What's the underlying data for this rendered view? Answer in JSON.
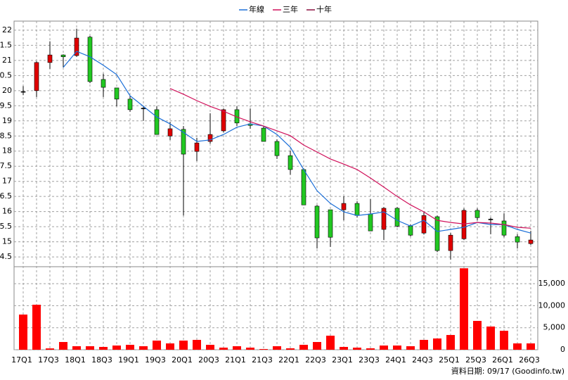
{
  "chart_data": [
    {
      "type": "candlestick",
      "categories": [
        "17Q1",
        null,
        "17Q3",
        null,
        "18Q1",
        null,
        "18Q3",
        null,
        "19Q1",
        null,
        "19Q3",
        null,
        "20Q1",
        null,
        "20Q3",
        null,
        "21Q1",
        null,
        "21Q3",
        null,
        "22Q1",
        null,
        "22Q3",
        null,
        "23Q1",
        null,
        "23Q3",
        null,
        "24Q1",
        null,
        "24Q3",
        null,
        "25Q1",
        null,
        "25Q3",
        null,
        "26Q1",
        null,
        "26Q3"
      ],
      "open": [
        19.97,
        20.0,
        20.93,
        21.18,
        21.16,
        21.77,
        20.37,
        20.09,
        19.72,
        19.42,
        19.37,
        18.5,
        18.72,
        17.99,
        18.32,
        18.67,
        19.37,
        18.9,
        18.76,
        18.32,
        17.85,
        17.39,
        16.18,
        16.06,
        16.06,
        16.27,
        15.92,
        15.41,
        16.11,
        15.52,
        15.29,
        15.83,
        14.71,
        15.1,
        16.04,
        15.75,
        15.69,
        15.17,
        14.94
      ],
      "high": [
        20.15,
        20.97,
        21.63,
        21.2,
        22.05,
        21.81,
        20.56,
        20.09,
        19.83,
        19.48,
        19.48,
        18.97,
        18.83,
        18.44,
        19.25,
        19.41,
        19.48,
        19.41,
        18.83,
        18.39,
        18.02,
        17.43,
        16.22,
        16.06,
        16.5,
        16.34,
        16.41,
        16.15,
        16.15,
        15.57,
        15.99,
        15.87,
        15.29,
        16.11,
        16.11,
        15.8,
        15.94,
        15.25,
        15.36
      ],
      "low": [
        19.85,
        19.79,
        20.72,
        20.77,
        21.12,
        20.25,
        19.79,
        19.48,
        19.3,
        19.0,
        18.55,
        18.37,
        15.87,
        17.67,
        18.25,
        18.62,
        18.83,
        18.74,
        18.32,
        17.74,
        17.22,
        16.22,
        14.78,
        14.83,
        15.71,
        15.8,
        15.36,
        15.06,
        15.48,
        15.18,
        15.24,
        14.66,
        14.41,
        15.06,
        15.71,
        15.25,
        15.15,
        14.78,
        14.9
      ],
      "close": [
        19.97,
        20.93,
        21.18,
        21.12,
        21.74,
        20.3,
        20.11,
        19.72,
        19.37,
        19.42,
        18.55,
        18.74,
        17.9,
        18.27,
        18.55,
        19.37,
        18.93,
        18.85,
        18.32,
        17.85,
        17.39,
        16.22,
        15.13,
        15.15,
        16.27,
        15.87,
        15.36,
        16.11,
        15.52,
        15.22,
        15.87,
        14.71,
        15.22,
        16.04,
        15.8,
        15.75,
        15.22,
        14.99,
        15.06
      ],
      "up_color": "#e00000",
      "down_color": "#22c822",
      "series": [
        {
          "name": "年線",
          "color": "#1c6fd8",
          "values": [
            null,
            null,
            null,
            20.77,
            21.3,
            21.12,
            20.84,
            20.53,
            19.83,
            19.48,
            19.13,
            18.9,
            18.62,
            18.32,
            18.37,
            18.55,
            18.79,
            18.9,
            18.83,
            18.55,
            18.13,
            17.39,
            16.69,
            16.27,
            15.99,
            15.87,
            15.92,
            15.99,
            15.71,
            15.52,
            15.71,
            15.34,
            15.41,
            15.48,
            15.64,
            15.57,
            15.57,
            15.41,
            15.29
          ]
        },
        {
          "name": "三年",
          "color": "#d0105a",
          "values": [
            null,
            null,
            null,
            null,
            null,
            null,
            null,
            null,
            null,
            null,
            null,
            20.07,
            19.88,
            19.67,
            19.48,
            19.32,
            19.13,
            18.97,
            18.83,
            18.67,
            18.51,
            18.2,
            17.97,
            17.74,
            17.57,
            17.39,
            17.11,
            16.81,
            16.5,
            16.22,
            15.99,
            15.71,
            15.64,
            15.59,
            15.64,
            15.62,
            15.57,
            15.48,
            15.45
          ]
        },
        {
          "name": "十年",
          "color": "#8a1040",
          "values": [
            null,
            null,
            null,
            null,
            null,
            null,
            null,
            null,
            null,
            null,
            null,
            null,
            null,
            null,
            null,
            null,
            null,
            null,
            null,
            null,
            null,
            null,
            null,
            null,
            null,
            null,
            null,
            null,
            null,
            null,
            null,
            null,
            null,
            null,
            null,
            null,
            null,
            null,
            null
          ]
        }
      ],
      "ylim": [
        14.2,
        22.3
      ],
      "yticks": [
        22,
        {
          "value": 21.5,
          "label": "1.5"
        },
        21,
        {
          "value": 20.5,
          "label": "0.5"
        },
        20,
        {
          "value": 19.5,
          "label": "9.5"
        },
        19,
        {
          "value": 18.5,
          "label": "8.5"
        },
        18,
        {
          "value": 17.5,
          "label": "7.5"
        },
        17,
        {
          "value": 16.5,
          "label": "6.5"
        },
        16,
        {
          "value": 15.5,
          "label": "5.5"
        },
        15,
        {
          "value": 14.5,
          "label": "4.5"
        }
      ],
      "grid": true
    },
    {
      "type": "bar",
      "color": "#ff0000",
      "values": [
        7990,
        10220,
        300,
        1760,
        800,
        800,
        640,
        960,
        1120,
        800,
        2080,
        1440,
        2080,
        2240,
        1120,
        480,
        800,
        480,
        160,
        800,
        320,
        1120,
        1760,
        3190,
        640,
        480,
        320,
        960,
        960,
        800,
        2240,
        2560,
        3350,
        18500,
        6550,
        5270,
        4310,
        1440,
        1440
      ],
      "ylim": [
        0,
        18700
      ],
      "yticks": [
        0,
        {
          "value": 5000,
          "label": "5,000"
        },
        {
          "value": 10000,
          "label": "10,000"
        },
        {
          "value": 15000,
          "label": "15,000"
        }
      ],
      "grid": true
    }
  ],
  "source": "資料日期: 09/17 (Goodinfo.tw)"
}
